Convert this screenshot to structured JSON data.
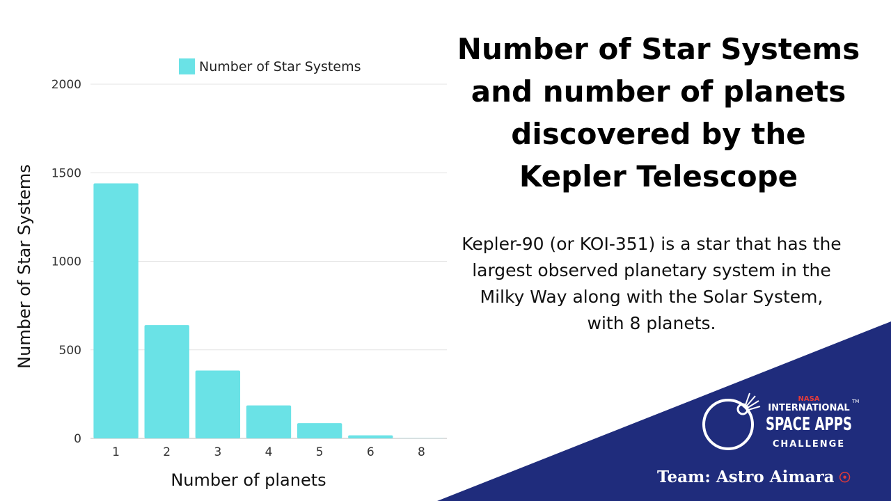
{
  "chart_data": {
    "type": "bar",
    "title": "",
    "xlabel": "Number of planets",
    "ylabel": "Number of Star Systems",
    "categories": [
      "1",
      "2",
      "3",
      "4",
      "5",
      "6",
      "8"
    ],
    "series": [
      {
        "name": "Number of Star Systems",
        "values": [
          1440,
          640,
          383,
          186,
          86,
          17,
          1
        ]
      }
    ],
    "ylim": [
      0,
      2000
    ],
    "yticks": [
      "0",
      "500",
      "1000",
      "1500",
      "2000"
    ],
    "grid": true,
    "legend_position": "top",
    "bar_color": "#6ae2e6"
  },
  "headline": "Number of Star Systems and number of planets discovered by the Kepler Telescope",
  "description": "Kepler-90 (or KOI-351) is a star that has the largest observed planetary system in the Milky Way along with the Solar System, with 8 planets.",
  "logo": {
    "line1": "NASA",
    "line2": "INTERNATIONAL",
    "line3": "SPACE APPS",
    "line4": "CHALLENGE",
    "tm": "TM"
  },
  "team": "Team: Astro Aimara",
  "colors": {
    "navy": "#1f2c7c",
    "bar": "#6ae2e6",
    "logo_red": "#e23b3b"
  }
}
